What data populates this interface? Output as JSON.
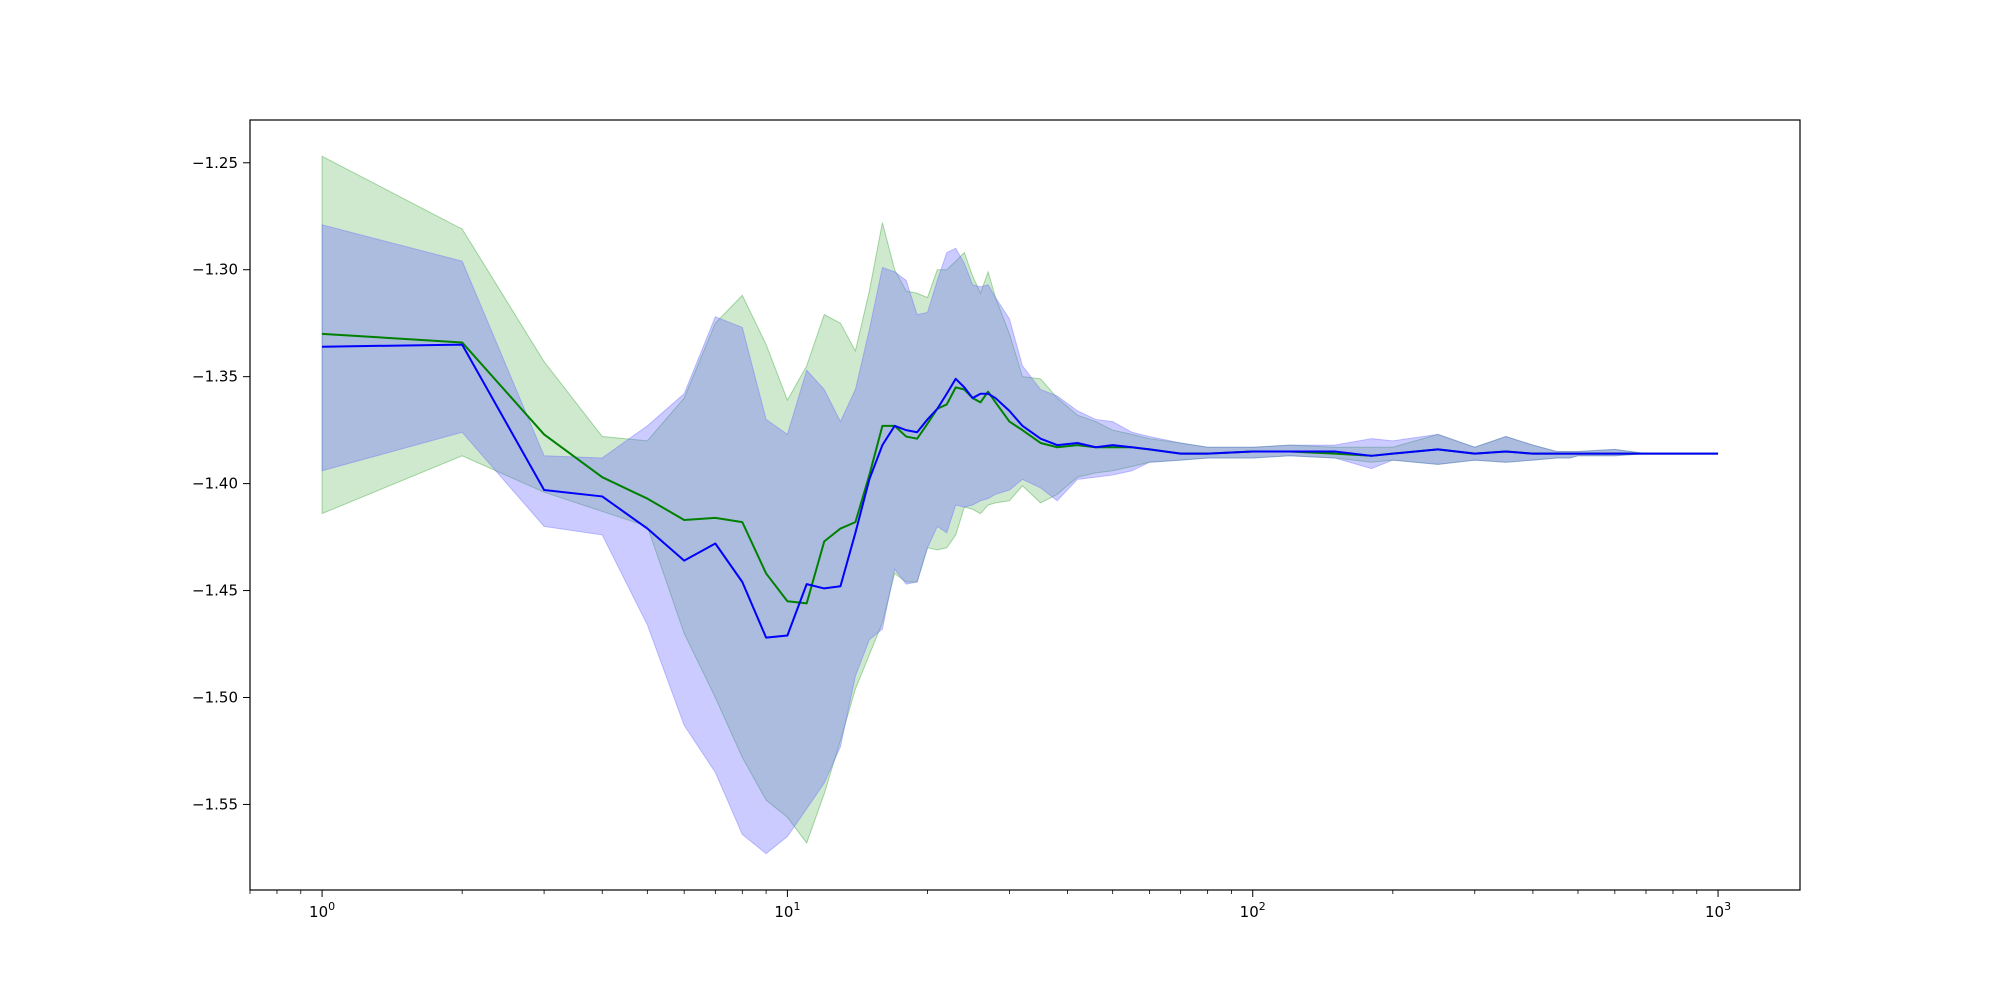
{
  "chart_data": {
    "type": "line",
    "title": "",
    "xlabel": "",
    "ylabel": "",
    "x_scale": "log",
    "xlim": [
      0.7,
      1500
    ],
    "ylim": [
      -1.59,
      -1.23
    ],
    "grid": false,
    "legend": "none",
    "x_ticks": [
      {
        "value": 1,
        "base": "10",
        "exp": "0"
      },
      {
        "value": 10,
        "base": "10",
        "exp": "1"
      },
      {
        "value": 100,
        "base": "10",
        "exp": "2"
      },
      {
        "value": 1000,
        "base": "10",
        "exp": "3"
      }
    ],
    "y_ticks": [
      {
        "value": -1.25,
        "label": "−1.25"
      },
      {
        "value": -1.3,
        "label": "−1.30"
      },
      {
        "value": -1.35,
        "label": "−1.35"
      },
      {
        "value": -1.4,
        "label": "−1.40"
      },
      {
        "value": -1.45,
        "label": "−1.45"
      },
      {
        "value": -1.5,
        "label": "−1.50"
      },
      {
        "value": -1.55,
        "label": "−1.55"
      }
    ],
    "series": [
      {
        "color": "#008000",
        "band_color": "#2ca02c",
        "x": [
          1,
          2,
          3,
          4,
          5,
          6,
          7,
          8,
          9,
          10,
          11,
          12,
          13,
          14,
          15,
          16,
          17,
          18,
          19,
          20,
          21,
          22,
          23,
          24,
          25,
          26,
          27,
          28,
          30,
          32,
          35,
          38,
          42,
          46,
          50,
          55,
          60,
          70,
          80,
          100,
          120,
          150,
          180,
          200,
          250,
          300,
          350,
          400,
          450,
          480,
          500,
          600,
          700,
          1000
        ],
        "y": [
          -1.33,
          -1.334,
          -1.377,
          -1.397,
          -1.407,
          -1.417,
          -1.416,
          -1.418,
          -1.442,
          -1.455,
          -1.456,
          -1.427,
          -1.421,
          -1.418,
          -1.396,
          -1.373,
          -1.373,
          -1.378,
          -1.379,
          -1.372,
          -1.365,
          -1.363,
          -1.355,
          -1.356,
          -1.36,
          -1.362,
          -1.357,
          -1.362,
          -1.371,
          -1.375,
          -1.381,
          -1.383,
          -1.382,
          -1.383,
          -1.383,
          -1.383,
          -1.384,
          -1.386,
          -1.386,
          -1.385,
          -1.385,
          -1.386,
          -1.387,
          -1.386,
          -1.384,
          -1.386,
          -1.385,
          -1.386,
          -1.386,
          -1.386,
          -1.386,
          -1.386,
          -1.386,
          -1.386
        ],
        "upper": [
          -1.247,
          -1.281,
          -1.343,
          -1.378,
          -1.38,
          -1.36,
          -1.325,
          -1.312,
          -1.335,
          -1.361,
          -1.345,
          -1.321,
          -1.325,
          -1.338,
          -1.31,
          -1.278,
          -1.3,
          -1.31,
          -1.311,
          -1.313,
          -1.3,
          -1.3,
          -1.296,
          -1.292,
          -1.303,
          -1.311,
          -1.301,
          -1.313,
          -1.33,
          -1.35,
          -1.351,
          -1.36,
          -1.368,
          -1.371,
          -1.375,
          -1.377,
          -1.379,
          -1.381,
          -1.383,
          -1.383,
          -1.382,
          -1.383,
          -1.383,
          -1.383,
          -1.377,
          -1.383,
          -1.378,
          -1.382,
          -1.385,
          -1.385,
          -1.385,
          -1.384,
          -1.386,
          -1.386
        ],
        "lower": [
          -1.414,
          -1.387,
          -1.404,
          -1.413,
          -1.42,
          -1.47,
          -1.5,
          -1.528,
          -1.548,
          -1.556,
          -1.568,
          -1.545,
          -1.52,
          -1.496,
          -1.48,
          -1.465,
          -1.442,
          -1.446,
          -1.446,
          -1.43,
          -1.431,
          -1.43,
          -1.424,
          -1.411,
          -1.412,
          -1.414,
          -1.41,
          -1.409,
          -1.408,
          -1.401,
          -1.409,
          -1.405,
          -1.397,
          -1.395,
          -1.394,
          -1.392,
          -1.39,
          -1.389,
          -1.388,
          -1.388,
          -1.387,
          -1.388,
          -1.39,
          -1.389,
          -1.391,
          -1.389,
          -1.39,
          -1.389,
          -1.388,
          -1.388,
          -1.387,
          -1.387,
          -1.386,
          -1.386
        ]
      },
      {
        "color": "#0000ff",
        "band_color": "#6b6bff",
        "x": [
          1,
          2,
          3,
          4,
          5,
          6,
          7,
          8,
          9,
          10,
          11,
          12,
          13,
          14,
          15,
          16,
          17,
          18,
          19,
          20,
          21,
          22,
          23,
          24,
          25,
          26,
          27,
          28,
          30,
          32,
          35,
          38,
          42,
          46,
          50,
          55,
          60,
          70,
          80,
          100,
          120,
          150,
          180,
          200,
          250,
          300,
          350,
          400,
          450,
          480,
          500,
          600,
          700,
          1000
        ],
        "y": [
          -1.336,
          -1.335,
          -1.403,
          -1.406,
          -1.421,
          -1.436,
          -1.428,
          -1.446,
          -1.472,
          -1.471,
          -1.447,
          -1.449,
          -1.448,
          -1.423,
          -1.398,
          -1.382,
          -1.373,
          -1.375,
          -1.376,
          -1.37,
          -1.365,
          -1.358,
          -1.351,
          -1.355,
          -1.36,
          -1.358,
          -1.358,
          -1.36,
          -1.366,
          -1.373,
          -1.379,
          -1.382,
          -1.381,
          -1.383,
          -1.382,
          -1.383,
          -1.384,
          -1.386,
          -1.386,
          -1.385,
          -1.385,
          -1.385,
          -1.387,
          -1.386,
          -1.384,
          -1.386,
          -1.385,
          -1.386,
          -1.386,
          -1.386,
          -1.386,
          -1.386,
          -1.386,
          -1.386
        ],
        "upper": [
          -1.279,
          -1.296,
          -1.387,
          -1.388,
          -1.373,
          -1.358,
          -1.322,
          -1.327,
          -1.37,
          -1.377,
          -1.347,
          -1.356,
          -1.371,
          -1.356,
          -1.328,
          -1.299,
          -1.301,
          -1.305,
          -1.321,
          -1.32,
          -1.305,
          -1.292,
          -1.29,
          -1.297,
          -1.307,
          -1.308,
          -1.307,
          -1.313,
          -1.323,
          -1.345,
          -1.356,
          -1.359,
          -1.366,
          -1.37,
          -1.371,
          -1.376,
          -1.378,
          -1.381,
          -1.383,
          -1.383,
          -1.382,
          -1.382,
          -1.379,
          -1.38,
          -1.377,
          -1.383,
          -1.378,
          -1.382,
          -1.385,
          -1.385,
          -1.385,
          -1.384,
          -1.386,
          -1.386
        ],
        "lower": [
          -1.394,
          -1.376,
          -1.42,
          -1.424,
          -1.466,
          -1.513,
          -1.535,
          -1.564,
          -1.573,
          -1.565,
          -1.552,
          -1.54,
          -1.523,
          -1.49,
          -1.473,
          -1.468,
          -1.44,
          -1.447,
          -1.446,
          -1.43,
          -1.42,
          -1.423,
          -1.41,
          -1.411,
          -1.41,
          -1.408,
          -1.407,
          -1.405,
          -1.403,
          -1.398,
          -1.402,
          -1.408,
          -1.398,
          -1.397,
          -1.396,
          -1.394,
          -1.39,
          -1.389,
          -1.388,
          -1.388,
          -1.387,
          -1.388,
          -1.393,
          -1.389,
          -1.391,
          -1.389,
          -1.39,
          -1.389,
          -1.388,
          -1.388,
          -1.387,
          -1.387,
          -1.386,
          -1.386
        ]
      }
    ]
  }
}
